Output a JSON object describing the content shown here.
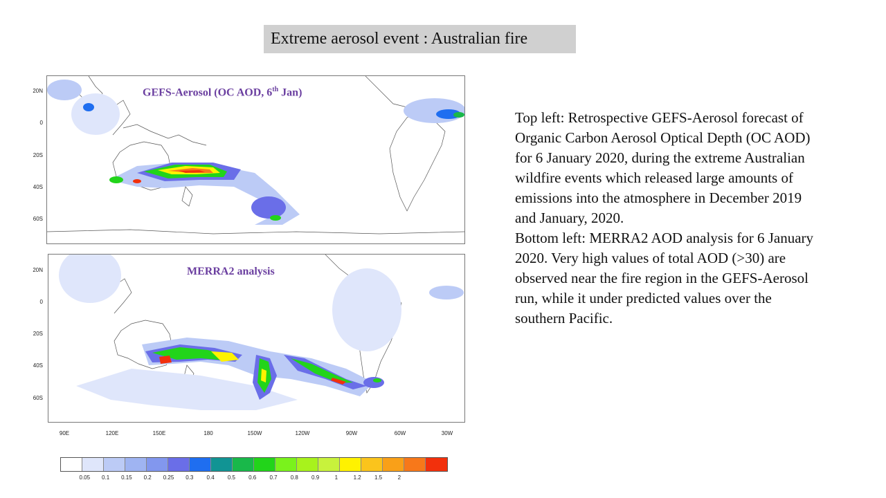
{
  "title": "Extreme aerosol event : Australian fire",
  "top_map": {
    "title_main": "GEFS-Aerosol (OC AOD, 6",
    "title_sup": "th",
    "title_end": " Jan)",
    "lat_labels": [
      "20N",
      "0",
      "20S",
      "40S",
      "60S"
    ]
  },
  "bottom_map": {
    "title": "MERRA2 analysis",
    "lat_labels": [
      "20N",
      "0",
      "20S",
      "40S",
      "60S"
    ]
  },
  "lon_labels": [
    "90E",
    "120E",
    "150E",
    "180",
    "150W",
    "120W",
    "90W",
    "60W",
    "30W"
  ],
  "description": [
    "Top left:  Retrospective GEFS-Aerosol forecast of Organic Carbon Aerosol Optical Depth (OC AOD) for 6 January 2020, during the extreme Australian wildfire events which released large amounts of emissions into the atmosphere in December 2019 and January, 2020.",
    "Bottom left: MERRA2 AOD analysis for 6 January 2020.  Very high values of total AOD (>30) are observed near the fire region in the GEFS-Aerosol run, while it under predicted values over the southern Pacific."
  ],
  "colorbar": {
    "colors": [
      "#ffffff",
      "#dfe6fb",
      "#bccbf6",
      "#9fb4f2",
      "#8297ee",
      "#6a6ee8",
      "#1f6ef0",
      "#119494",
      "#19b84a",
      "#22d41a",
      "#7af21c",
      "#a8f21c",
      "#c8f23c",
      "#fff200",
      "#fbc41c",
      "#f9a018",
      "#f7781a",
      "#f2300c"
    ],
    "labels": [
      "0.05",
      "0.1",
      "0.15",
      "0.2",
      "0.25",
      "0.3",
      "0.4",
      "0.5",
      "0.6",
      "0.7",
      "0.8",
      "0.9",
      "1",
      "1.2",
      "1.5",
      "2"
    ]
  }
}
